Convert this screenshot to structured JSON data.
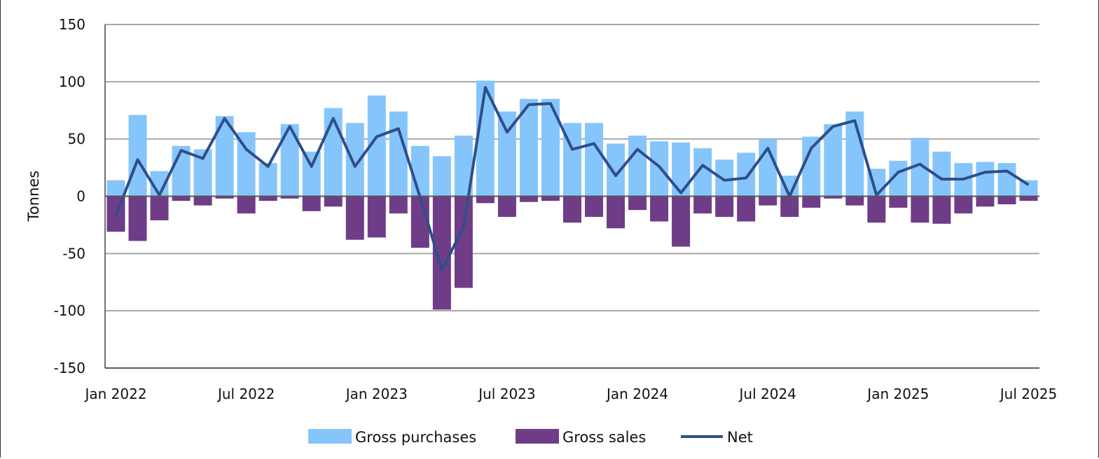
{
  "chart_data": {
    "type": "bar",
    "title": "",
    "xlabel": "",
    "ylabel": "Tonnes",
    "ylim": [
      -150,
      150
    ],
    "yticks": [
      150,
      100,
      50,
      0,
      -50,
      -100,
      -150
    ],
    "grid": true,
    "legend_position": "bottom-center",
    "categories": [
      "Jan 2022",
      "Feb 2022",
      "Mar 2022",
      "Apr 2022",
      "May 2022",
      "Jun 2022",
      "Jul 2022",
      "Aug 2022",
      "Sep 2022",
      "Oct 2022",
      "Nov 2022",
      "Dec 2022",
      "Jan 2023",
      "Feb 2023",
      "Mar 2023",
      "Apr 2023",
      "May 2023",
      "Jun 2023",
      "Jul 2023",
      "Aug 2023",
      "Sep 2023",
      "Oct 2023",
      "Nov 2023",
      "Dec 2023",
      "Jan 2024",
      "Feb 2024",
      "Mar 2024",
      "Apr 2024",
      "May 2024",
      "Jun 2024",
      "Jul 2024",
      "Aug 2024",
      "Sep 2024",
      "Oct 2024",
      "Nov 2024",
      "Dec 2024",
      "Jan 2025",
      "Feb 2025",
      "Mar 2025",
      "Apr 2025",
      "May 2025",
      "Jun 2025",
      "Jul 2025"
    ],
    "xtick_labels": [
      "Jan 2022",
      "Jul 2022",
      "Jan 2023",
      "Jul 2023",
      "Jan 2024",
      "Jul 2024",
      "Jan 2025",
      "Jul 2025"
    ],
    "series": [
      {
        "name": "Gross purchases",
        "kind": "bar",
        "color": "#85c5fb",
        "values": [
          14,
          71,
          22,
          44,
          41,
          70,
          56,
          29,
          63,
          39,
          77,
          64,
          88,
          74,
          44,
          35,
          53,
          101,
          74,
          85,
          85,
          64,
          64,
          46,
          53,
          48,
          47,
          42,
          32,
          38,
          50,
          18,
          52,
          63,
          74,
          24,
          31,
          51,
          39,
          29,
          30,
          29,
          14
        ]
      },
      {
        "name": "Gross sales",
        "kind": "bar",
        "color": "#6f3c87",
        "values": [
          -31,
          -39,
          -21,
          -4,
          -8,
          -2,
          -15,
          -4,
          -2,
          -13,
          -9,
          -38,
          -36,
          -15,
          -45,
          -99,
          -80,
          -6,
          -18,
          -5,
          -4,
          -23,
          -18,
          -28,
          -12,
          -22,
          -44,
          -15,
          -18,
          -22,
          -8,
          -18,
          -10,
          -2,
          -8,
          -23,
          -10,
          -23,
          -24,
          -15,
          -9,
          -7,
          -4
        ]
      },
      {
        "name": "Net",
        "kind": "line",
        "color": "#2f4e8a",
        "values": [
          -17,
          32,
          1,
          40,
          33,
          68,
          41,
          26,
          61,
          26,
          68,
          26,
          52,
          59,
          -1,
          -64,
          -27,
          95,
          56,
          80,
          81,
          41,
          46,
          18,
          41,
          26,
          3,
          27,
          14,
          16,
          42,
          0,
          42,
          61,
          66,
          1,
          21,
          28,
          15,
          15,
          21,
          22,
          10
        ]
      }
    ]
  }
}
